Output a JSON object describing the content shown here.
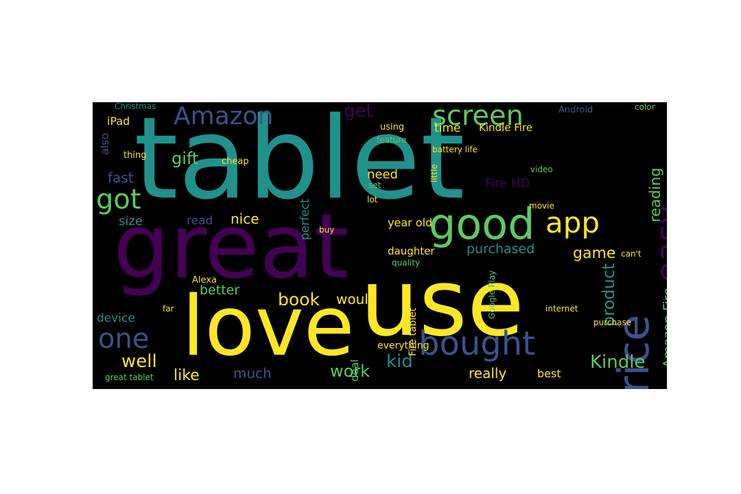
{
  "colors": {
    "background": "#000000",
    "page": "#ffffff",
    "palette": [
      "#440154",
      "#3b528b",
      "#21918c",
      "#5ec962",
      "#fde725"
    ]
  },
  "words": [
    "tablet",
    "great",
    "use",
    "love",
    "price",
    "good",
    "bought",
    "easy",
    "screen",
    "Amazon",
    "app",
    "one",
    "got",
    "Kindle",
    "book",
    "gift",
    "kid",
    "product",
    "Amazon Fire",
    "work",
    "get",
    "game",
    "reading",
    "like",
    "well",
    "fast",
    "much",
    "nice",
    "would",
    "really",
    "perfect",
    "better",
    "purchased",
    "device",
    "size",
    "year old",
    "Fire HD",
    "daughter",
    "time",
    "need",
    "Kindle Fire",
    "best",
    "iPad",
    "also",
    "everything",
    "deal",
    "Android",
    "Christmas",
    "read",
    "Alexa",
    "great tablet",
    "Fire tablet",
    "video",
    "movie",
    "cheap",
    "thing",
    "lot",
    "buy",
    "set",
    "quality",
    "battery life",
    "feature",
    "using",
    "Google Play",
    "far",
    "purchase",
    "internet",
    "can't",
    "color",
    "little"
  ]
}
